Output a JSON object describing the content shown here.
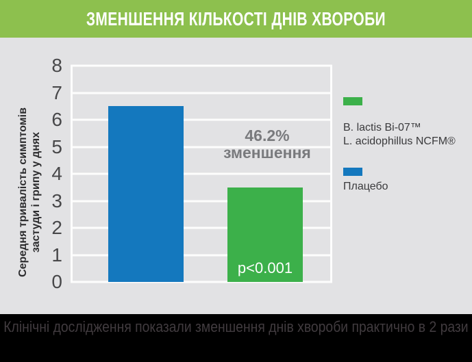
{
  "header": {
    "title": "ЗМЕНШЕННЯ КІЛЬКОСТІ ДНІВ ХВОРОБИ"
  },
  "chart_data": {
    "type": "bar",
    "title": "ЗМЕНШЕННЯ КІЛЬКОСТІ ДНІВ ХВОРОБИ",
    "ylabel": "Середня тривалість симптомів застуди і грипу у днях",
    "ylabel_lines": [
      "Середня тривалість симптомів",
      "застуди і грипу у днях"
    ],
    "xlabel": "",
    "ylim": [
      0,
      8
    ],
    "yticks": [
      "8",
      "7",
      "6",
      "5",
      "4",
      "3",
      "2",
      "1",
      "0"
    ],
    "grid": true,
    "legend_position": "right",
    "categories": [
      "Плацебо",
      "B. lactis Bi-07™ L. acidophillus NCFM®"
    ],
    "series": [
      {
        "name": "Плацебо",
        "value": 6.5,
        "color": "#1478be"
      },
      {
        "name": "B. lactis Bi-07™ L. acidophillus NCFM®",
        "value": 3.5,
        "color": "#3cb04a"
      }
    ],
    "annotations": {
      "reduction_line1": "46.2%",
      "reduction_line2": "зменшення",
      "p_value": "p<0.001"
    }
  },
  "legend": {
    "items": [
      {
        "color": "#3cb04a",
        "lines": [
          "B. lactis Bi-07™",
          "L. acidophillus NCFM®"
        ]
      },
      {
        "color": "#1478be",
        "lines": [
          "Плацебо"
        ]
      }
    ]
  },
  "footer": {
    "text": "Клінічні дослідження показали зменшення днів хвороби практично в 2 рази"
  },
  "colors": {
    "header_bg": "#8dc04e",
    "page_bg": "#e2e2e4",
    "gridline": "#fdfdfd",
    "bar_blue": "#1478be",
    "bar_green": "#3cb04a",
    "annotation_gray": "#797a7d",
    "pvalue_text": "#ffffff",
    "footer_bg": "#000000",
    "footer_text": "#413b3f"
  }
}
